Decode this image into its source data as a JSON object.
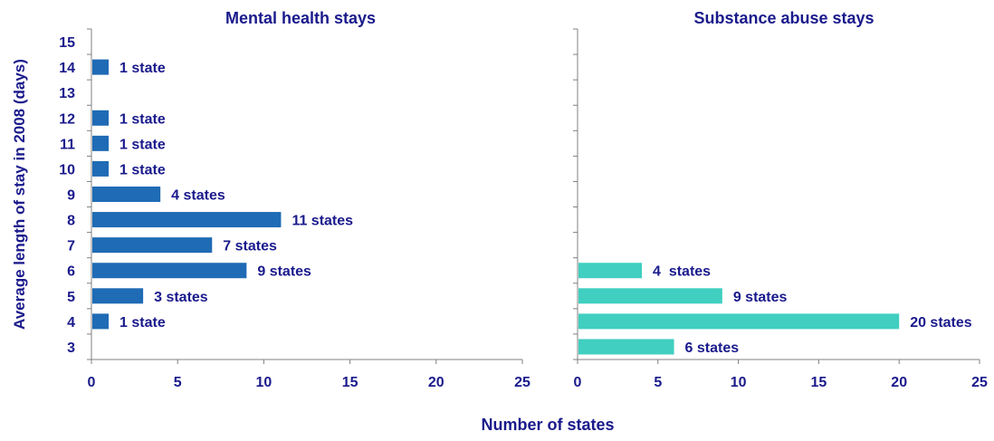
{
  "text_color": "#1a1a8c",
  "chart_data": [
    {
      "type": "bar",
      "orientation": "horizontal",
      "title": "Mental health stays",
      "ylabel": "Average length of stay in 2008 (days)",
      "xlabel": "Number of states",
      "categories": [
        "3",
        "4",
        "5",
        "6",
        "7",
        "8",
        "9",
        "10",
        "11",
        "12",
        "13",
        "14",
        "15"
      ],
      "values": [
        0,
        1,
        3,
        9,
        7,
        11,
        4,
        1,
        1,
        1,
        0,
        1,
        0
      ],
      "data_labels": [
        "",
        "1 state",
        "3 states",
        "9 states",
        "7 states",
        "11 states",
        "4 states",
        "1 state",
        "1 state",
        "1 state",
        "",
        "1 state",
        ""
      ],
      "xlim": [
        0,
        25
      ],
      "xticks": [
        "0",
        "5",
        "10",
        "15",
        "20",
        "25"
      ],
      "bar_color": "#1f6bb5",
      "grid": false
    },
    {
      "type": "bar",
      "orientation": "horizontal",
      "title": "Substance abuse stays",
      "xlabel": "Number of states",
      "categories": [
        "3",
        "4",
        "5",
        "6",
        "7",
        "8",
        "9",
        "10",
        "11",
        "12",
        "13",
        "14",
        "15"
      ],
      "values": [
        6,
        20,
        9,
        4,
        0,
        0,
        0,
        0,
        0,
        0,
        0,
        0,
        0
      ],
      "data_labels": [
        "6 states",
        "20 states",
        "9 states",
        "4  states",
        "",
        "",
        "",
        "",
        "",
        "",
        "",
        "",
        ""
      ],
      "xlim": [
        0,
        25
      ],
      "xticks": [
        "0",
        "5",
        "10",
        "15",
        "20",
        "25"
      ],
      "bar_color": "#40cfc0",
      "grid": false
    }
  ]
}
